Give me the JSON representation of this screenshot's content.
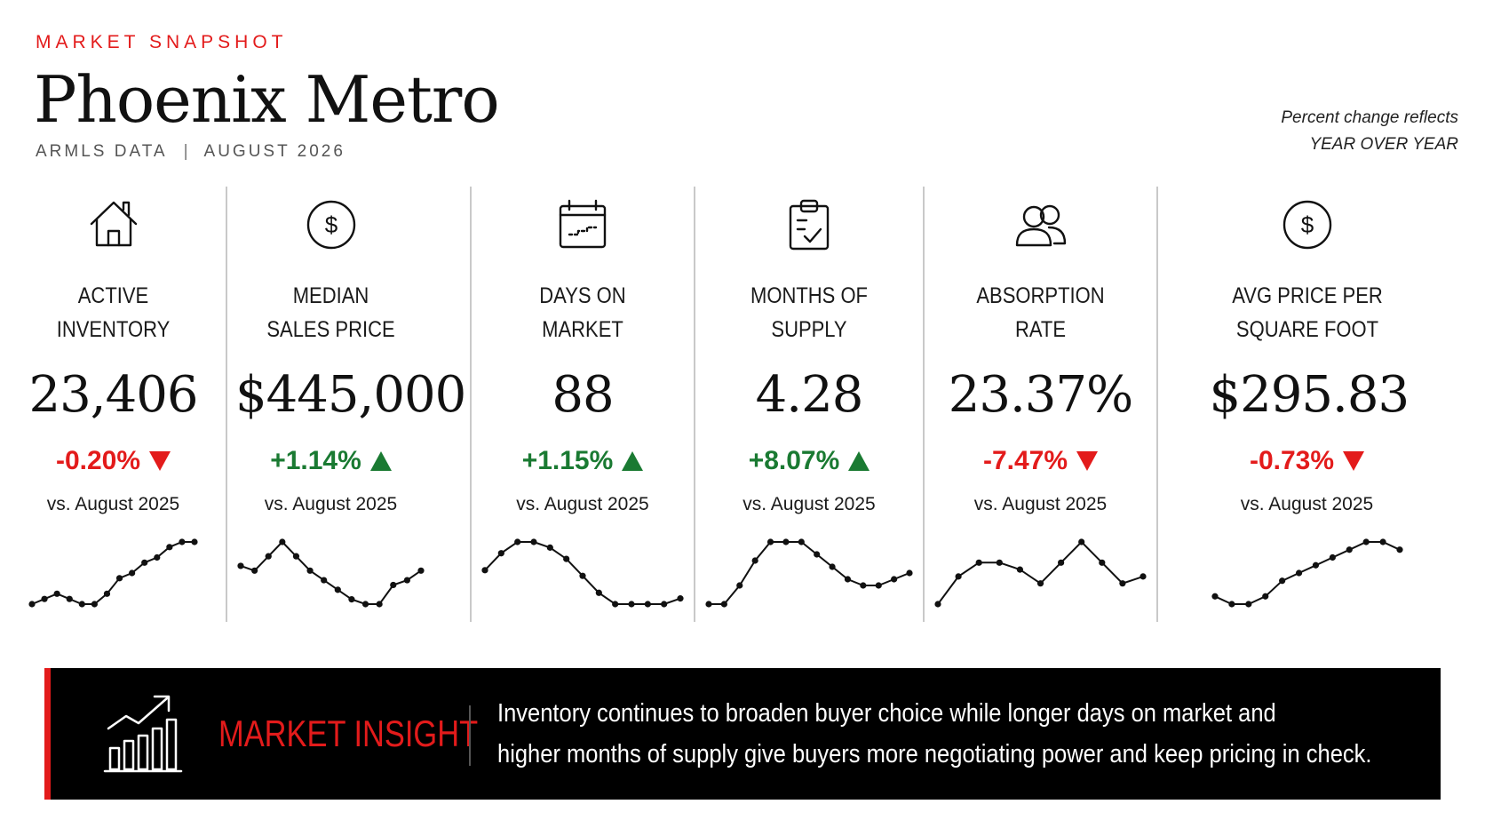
{
  "header": {
    "eyebrow": "MARKET SNAPSHOT",
    "title": "Phoenix Metro",
    "source": "ARMLS DATA",
    "separator": "|",
    "period": "AUGUST 2026",
    "note_line1": "Percent change reflects",
    "note_line2": "YEAR OVER YEAR"
  },
  "metrics": [
    {
      "icon": "house-icon",
      "label1": "ACTIVE",
      "label2": "INVENTORY",
      "value": "23,406",
      "change": "-0.20%",
      "direction": "down",
      "comparison": "vs. August 2025",
      "trend": [
        3,
        4,
        5,
        4,
        3,
        3,
        5,
        8,
        9,
        11,
        12,
        14,
        15,
        15
      ]
    },
    {
      "icon": "dollar-circle-icon",
      "label1": "MEDIAN",
      "label2": "SALES PRICE",
      "value": "$445,000",
      "change": "+1.14%",
      "direction": "up",
      "comparison": "vs. August 2025",
      "trend": [
        10,
        9,
        12,
        15,
        12,
        9,
        7,
        5,
        3,
        2,
        2,
        6,
        7,
        9
      ]
    },
    {
      "icon": "calendar-icon",
      "label1": "DAYS ON",
      "label2": "MARKET",
      "value": "88",
      "change": "+1.15%",
      "direction": "up",
      "comparison": "vs. August 2025",
      "trend": [
        10,
        13,
        15,
        15,
        14,
        12,
        9,
        6,
        4,
        4,
        4,
        4,
        5
      ]
    },
    {
      "icon": "clipboard-icon",
      "label1": "MONTHS OF",
      "label2": "SUPPLY",
      "value": "4.28",
      "change": "+8.07%",
      "direction": "up",
      "comparison": "vs. August 2025",
      "trend": [
        2,
        2,
        5,
        9,
        12,
        12,
        12,
        10,
        8,
        6,
        5,
        5,
        6,
        7
      ]
    },
    {
      "icon": "users-icon",
      "label1": "ABSORPTION",
      "label2": "RATE",
      "value": "23.37%",
      "change": "-7.47%",
      "direction": "down",
      "comparison": "vs. August 2025",
      "trend": [
        5,
        9,
        11,
        11,
        10,
        8,
        11,
        14,
        11,
        8,
        9
      ]
    },
    {
      "icon": "dollar-circle-icon",
      "label1": "AVG PRICE PER",
      "label2": "SQUARE FOOT",
      "value": "$295.83",
      "change": "-0.73%",
      "direction": "down",
      "comparison": "vs. August 2025",
      "trend": [
        5,
        4,
        4,
        5,
        7,
        8,
        9,
        10,
        11,
        12,
        12,
        11
      ]
    }
  ],
  "insight": {
    "icon": "growth-chart-icon",
    "title": "MARKET INSIGHT",
    "line1": "Inventory continues to broaden buyer choice while longer days on market and",
    "line2": "higher months of supply give buyers more negotiating power and keep pricing in check."
  }
}
